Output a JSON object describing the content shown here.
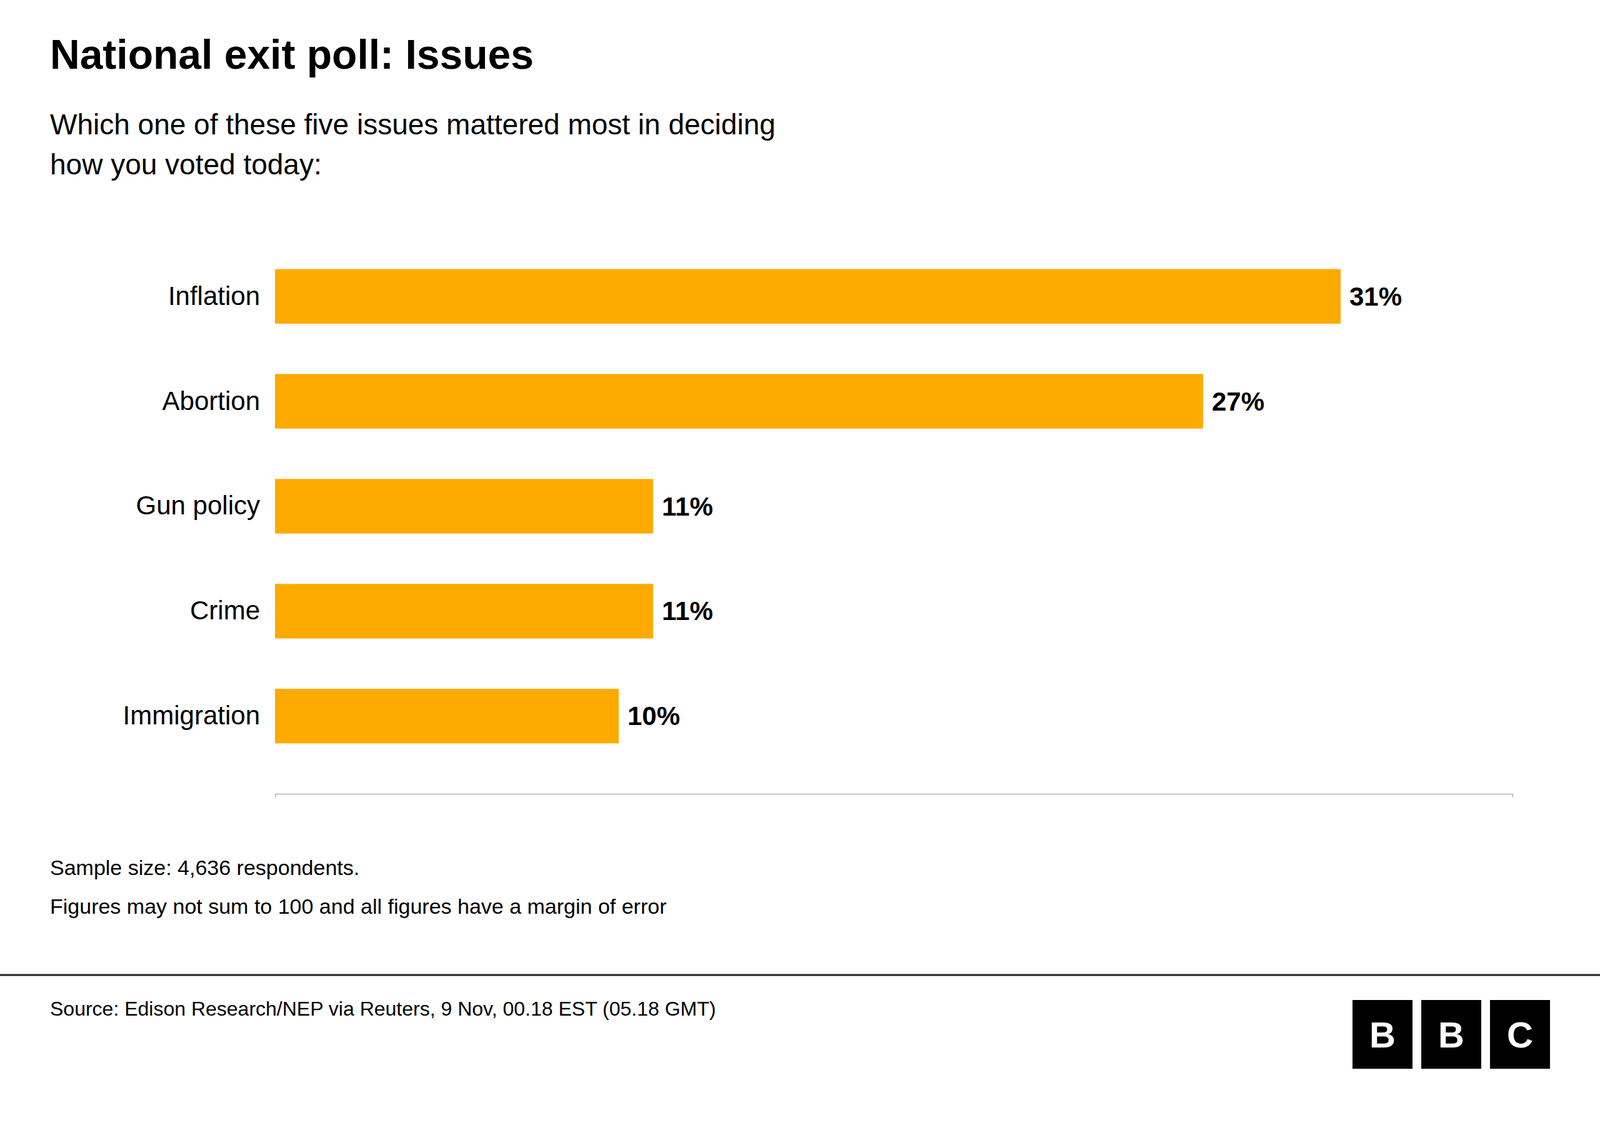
{
  "chart_data": {
    "type": "bar",
    "orientation": "horizontal",
    "title": "National exit poll: Issues",
    "subtitle": "Which one of these five issues mattered most in deciding\nhow you voted today:",
    "categories": [
      "Inflation",
      "Abortion",
      "Gun policy",
      "Crime",
      "Immigration"
    ],
    "values": [
      31,
      27,
      11,
      11,
      10
    ],
    "value_labels": [
      "31%",
      "27%",
      "11%",
      "11%",
      "10%"
    ],
    "data_labels": true,
    "color": "#FFAA00",
    "xlim": [
      0,
      36
    ],
    "tick_labels": false,
    "grid": false,
    "annotations": [
      "Sample size: 4,636 respondents.",
      "Figures may not sum to 100 and all figures have a margin of error",
      "Source: Edison Research/NEP via Reuters, 9 Nov, 00.18 EST (05.18 GMT)",
      "B",
      "B",
      "C"
    ]
  }
}
